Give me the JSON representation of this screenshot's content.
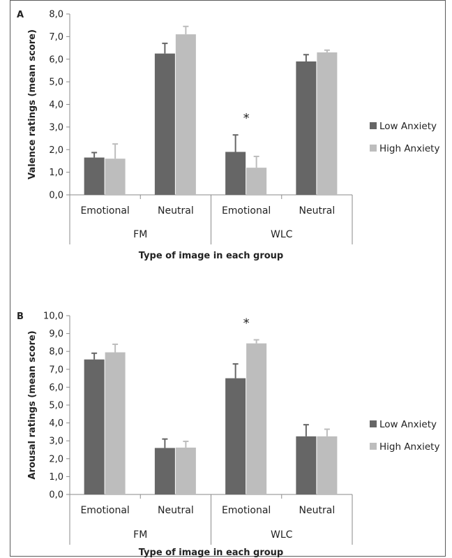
{
  "chart_data": [
    {
      "panel_letter": "A",
      "type": "bar",
      "ylabel": "Valence ratings (mean score)",
      "xlabel": "Type of image in each group",
      "ylim": [
        0,
        8
      ],
      "yticks": [
        "0,0",
        "1,0",
        "2,0",
        "3,0",
        "4,0",
        "5,0",
        "6,0",
        "7,0",
        "8,0"
      ],
      "groups": [
        "FM",
        "WLC"
      ],
      "categories": [
        "Emotional",
        "Neutral",
        "Emotional",
        "Neutral"
      ],
      "series": [
        {
          "name": "Low Anxiety",
          "color": "#666666",
          "values": [
            1.65,
            6.25,
            1.9,
            5.9
          ],
          "errors": [
            0.22,
            0.45,
            0.75,
            0.3
          ]
        },
        {
          "name": "High Anxiety",
          "color": "#bdbdbd",
          "values": [
            1.6,
            7.1,
            1.2,
            6.3
          ],
          "errors": [
            0.65,
            0.35,
            0.5,
            0.1
          ]
        }
      ],
      "annotations": [
        {
          "text": "*",
          "category_index": 2
        }
      ],
      "legend": "right"
    },
    {
      "panel_letter": "B",
      "type": "bar",
      "ylabel": "Arousal ratings (mean score)",
      "xlabel": "Type of image in each group",
      "ylim": [
        0,
        10
      ],
      "yticks": [
        "0,0",
        "1,0",
        "2,0",
        "3,0",
        "4,0",
        "5,0",
        "6,0",
        "7,0",
        "8,0",
        "9,0",
        "10,0"
      ],
      "groups": [
        "FM",
        "WLC"
      ],
      "categories": [
        "Emotional",
        "Neutral",
        "Emotional",
        "Neutral"
      ],
      "series": [
        {
          "name": "Low Anxiety",
          "color": "#666666",
          "values": [
            7.55,
            2.6,
            6.5,
            3.25
          ],
          "errors": [
            0.35,
            0.5,
            0.8,
            0.65
          ]
        },
        {
          "name": "High Anxiety",
          "color": "#bdbdbd",
          "values": [
            7.95,
            2.62,
            8.45,
            3.25
          ],
          "errors": [
            0.45,
            0.35,
            0.2,
            0.4
          ]
        }
      ],
      "annotations": [
        {
          "text": "*",
          "category_index": 2
        }
      ],
      "legend": "right"
    }
  ]
}
